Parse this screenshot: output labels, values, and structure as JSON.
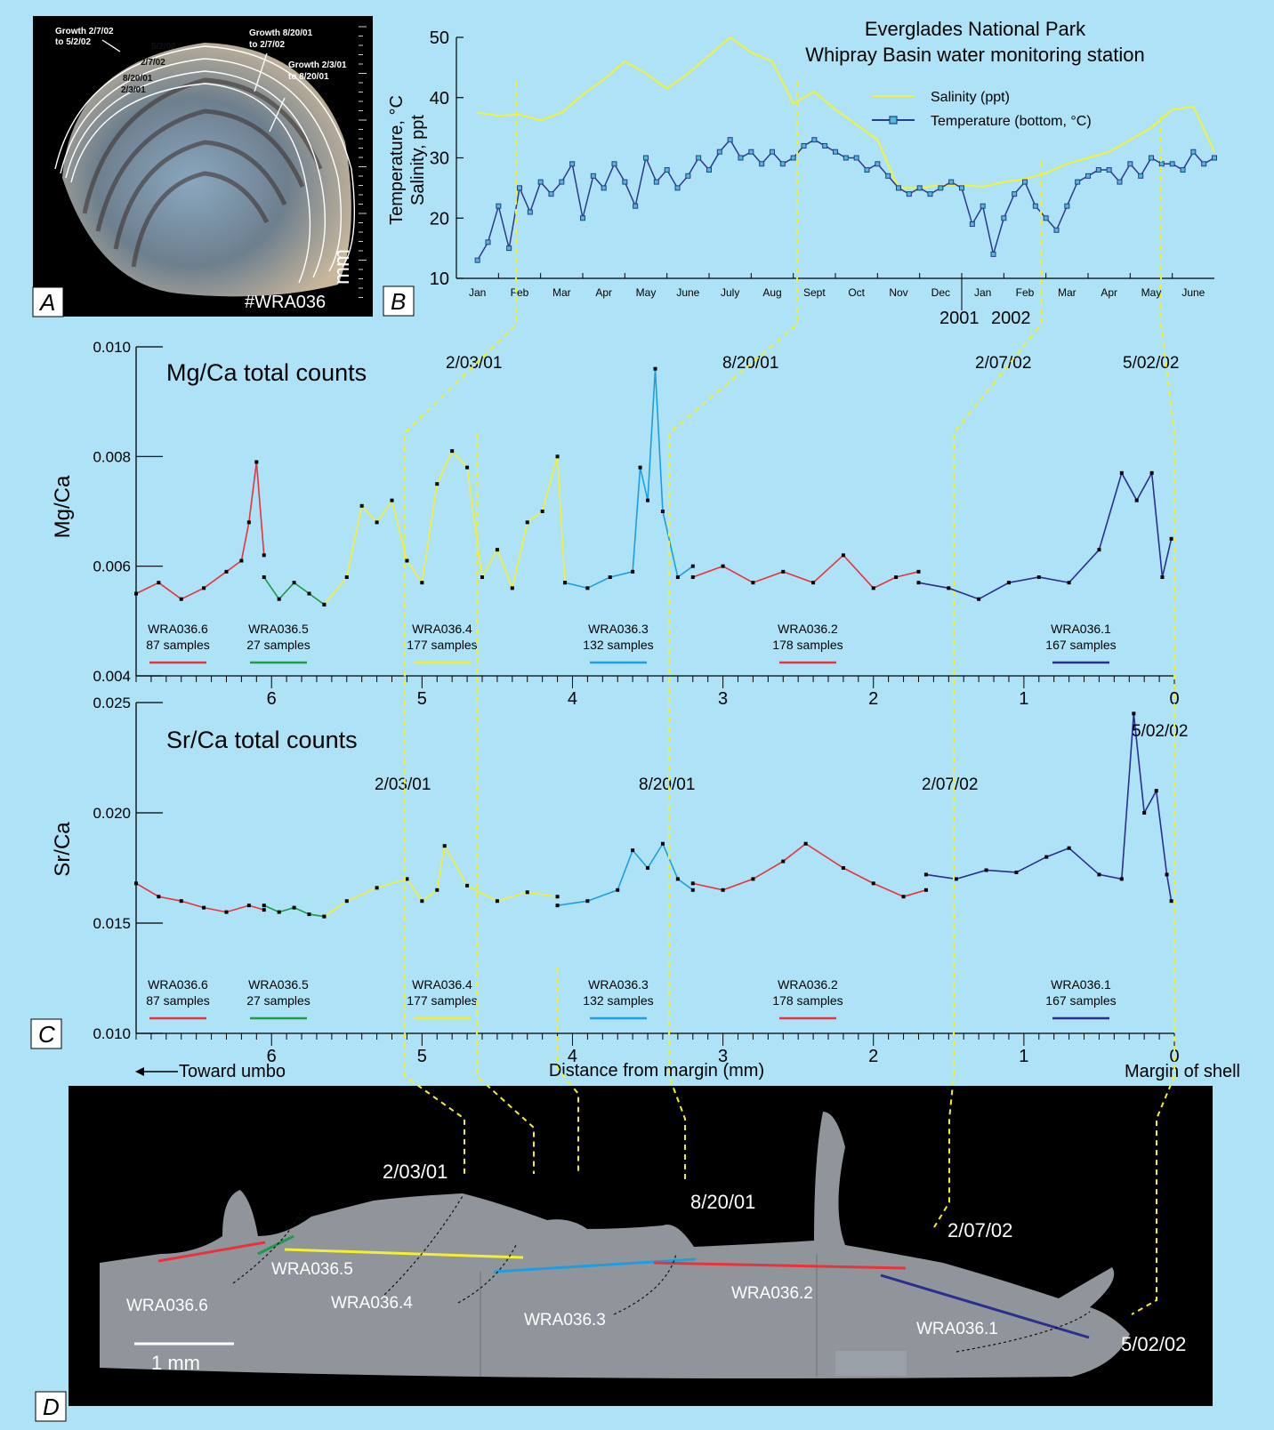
{
  "colors": {
    "background": "#aee3f7",
    "salinity": "#f2f23a",
    "temperature": "#2b3a8a",
    "red": "#e8333b",
    "green": "#1f9a48",
    "yellow": "#f5ef2f",
    "cyan": "#1e9ee0",
    "navy": "#2a2f8f",
    "guide": "#f2ef2a"
  },
  "panel_labels": {
    "a": "A",
    "b": "B",
    "c": "C",
    "d": "D"
  },
  "photo": {
    "specimen": "#WRA036",
    "scale_unit": "mm",
    "annotations": {
      "growth_1": "Growth 2/7/02",
      "growth_1b": "to 5/2/02",
      "growth_2": "Growth 8/20/01",
      "growth_2b": "to 2/7/02",
      "growth_3": "Growth 2/3/01",
      "growth_3b": "to 8/20/01",
      "band_1": "5/2/02",
      "band_2": "2/7/02",
      "band_3": "8/20/01",
      "band_4": "2/3/01"
    }
  },
  "section": {
    "scale_bar": "1 mm",
    "dates": {
      "d1": "2/03/01",
      "d2": "8/20/01",
      "d3": "2/07/02",
      "d4": "5/02/02"
    },
    "tracks": [
      {
        "id": "WRA036.6",
        "color": "red"
      },
      {
        "id": "WRA036.5",
        "color": "green"
      },
      {
        "id": "WRA036.4",
        "color": "yellow"
      },
      {
        "id": "WRA036.3",
        "color": "cyan"
      },
      {
        "id": "WRA036.2",
        "color": "red"
      },
      {
        "id": "WRA036.1",
        "color": "navy"
      }
    ]
  },
  "chart_data": [
    {
      "type": "line",
      "title_line1": "Everglades National Park",
      "title_line2": "Whipray Basin water monitoring station",
      "ylabel_line1": "Temperature, °C",
      "ylabel_line2": "Salinity, ppt",
      "ylim": [
        10,
        50
      ],
      "yticks": [
        10,
        20,
        30,
        40,
        50
      ],
      "months": [
        "Jan",
        "Feb",
        "Mar",
        "Apr",
        "May",
        "June",
        "July",
        "Aug",
        "Sept",
        "Oct",
        "Nov",
        "Dec",
        "Jan",
        "Feb",
        "Mar",
        "Apr",
        "May",
        "June"
      ],
      "year_labels": [
        "2001",
        "2002"
      ],
      "legend": [
        "Salinity (ppt)",
        "Temperature (bottom, °C)"
      ],
      "series": [
        {
          "name": "Salinity (ppt)",
          "x_month": [
            0,
            0.5,
            1,
            1.5,
            2,
            2.5,
            3,
            3.5,
            4,
            4.5,
            5,
            5.5,
            6,
            6.5,
            7,
            7.5,
            8,
            8.5,
            9,
            9.5,
            10,
            10.5,
            11,
            11.5,
            12,
            12.5,
            13,
            13.5,
            14,
            14.5,
            15,
            15.5,
            16,
            16.5,
            17,
            17.5
          ],
          "values": [
            37.5,
            37.0,
            37.2,
            36.2,
            37.5,
            40.5,
            43.0,
            46.0,
            44.0,
            41.5,
            44.0,
            47.0,
            50.0,
            47.5,
            46.0,
            39.0,
            41.0,
            38.0,
            35.5,
            33.0,
            25.0,
            25.0,
            25.5,
            25.5,
            25.2,
            26.0,
            26.5,
            27.5,
            29.0,
            30.0,
            31.0,
            33.0,
            35.0,
            38.0,
            38.5,
            31.0
          ]
        },
        {
          "name": "Temperature (bottom, °C)",
          "x_month": [
            0,
            0.25,
            0.5,
            0.75,
            1,
            1.25,
            1.5,
            1.75,
            2,
            2.25,
            2.5,
            2.75,
            3,
            3.25,
            3.5,
            3.75,
            4,
            4.25,
            4.5,
            4.75,
            5,
            5.25,
            5.5,
            5.75,
            6,
            6.25,
            6.5,
            6.75,
            7,
            7.25,
            7.5,
            7.75,
            8,
            8.25,
            8.5,
            8.75,
            9,
            9.25,
            9.5,
            9.75,
            10,
            10.25,
            10.5,
            10.75,
            11,
            11.25,
            11.5,
            11.75,
            12,
            12.25,
            12.5,
            12.75,
            13,
            13.25,
            13.5,
            13.75,
            14,
            14.25,
            14.5,
            14.75,
            15,
            15.25,
            15.5,
            15.75,
            16,
            16.25,
            16.5,
            16.75,
            17,
            17.25,
            17.5
          ],
          "values": [
            13,
            16,
            22,
            15,
            25,
            21,
            26,
            24,
            26,
            29,
            20,
            27,
            25,
            29,
            26,
            22,
            30,
            26,
            28,
            25,
            27,
            30,
            28,
            31,
            33,
            30,
            31,
            29,
            31,
            29,
            30,
            32,
            33,
            32,
            31,
            30,
            30,
            28,
            29,
            27,
            25,
            24,
            25,
            24,
            25,
            26,
            25,
            19,
            22,
            14,
            20,
            24,
            26,
            22,
            20,
            18,
            22,
            26,
            27,
            28,
            28,
            26,
            29,
            27,
            30,
            29,
            29,
            28,
            31,
            29,
            30
          ]
        }
      ]
    },
    {
      "type": "line",
      "title": "Mg/Ca total counts",
      "ylabel": "Mg/Ca",
      "xlim": [
        6.9,
        0
      ],
      "ylim": [
        0.004,
        0.01
      ],
      "yticks": [
        "0.004",
        "0.006",
        "0.008",
        "0.010"
      ],
      "xticks": [
        "6",
        "5",
        "4",
        "3",
        "2",
        "1",
        "0"
      ],
      "date_labels": {
        "d1": "2/03/01",
        "d2": "8/20/01",
        "d3": "2/07/02",
        "d4": "5/02/02"
      },
      "segments": [
        {
          "name": "WRA036.6",
          "samples": "87 samples",
          "color": "red",
          "x": [
            6.9,
            6.75,
            6.6,
            6.45,
            6.3,
            6.2,
            6.15,
            6.1,
            6.05
          ],
          "values": [
            0.0055,
            0.0057,
            0.0054,
            0.0056,
            0.0059,
            0.0061,
            0.0068,
            0.0079,
            0.0062
          ]
        },
        {
          "name": "WRA036.5",
          "samples": "27 samples",
          "color": "green",
          "x": [
            6.05,
            5.95,
            5.85,
            5.75,
            5.65
          ],
          "values": [
            0.0058,
            0.0054,
            0.0057,
            0.0055,
            0.0053
          ]
        },
        {
          "name": "WRA036.4",
          "samples": "177 samples",
          "color": "yellow",
          "x": [
            5.65,
            5.5,
            5.4,
            5.3,
            5.2,
            5.1,
            5.0,
            4.9,
            4.8,
            4.7,
            4.6,
            4.5,
            4.4,
            4.3,
            4.2,
            4.1,
            4.05
          ],
          "values": [
            0.0053,
            0.0058,
            0.0071,
            0.0068,
            0.0072,
            0.0061,
            0.0057,
            0.0075,
            0.0081,
            0.0078,
            0.0058,
            0.0063,
            0.0056,
            0.0068,
            0.007,
            0.008,
            0.0057
          ]
        },
        {
          "name": "WRA036.3",
          "samples": "132 samples",
          "color": "cyan",
          "x": [
            4.05,
            3.9,
            3.75,
            3.6,
            3.55,
            3.5,
            3.45,
            3.4,
            3.3,
            3.2
          ],
          "values": [
            0.0057,
            0.0056,
            0.0058,
            0.0059,
            0.0078,
            0.0072,
            0.0096,
            0.007,
            0.0058,
            0.006
          ]
        },
        {
          "name": "WRA036.2",
          "samples": "178 samples",
          "color": "red",
          "x": [
            3.2,
            3.0,
            2.8,
            2.6,
            2.4,
            2.2,
            2.0,
            1.85,
            1.7
          ],
          "values": [
            0.0058,
            0.006,
            0.0057,
            0.0059,
            0.0057,
            0.0062,
            0.0056,
            0.0058,
            0.0059
          ]
        },
        {
          "name": "WRA036.1",
          "samples": "167 samples",
          "color": "navy",
          "x": [
            1.7,
            1.5,
            1.3,
            1.1,
            0.9,
            0.7,
            0.5,
            0.35,
            0.25,
            0.15,
            0.08,
            0.02
          ],
          "values": [
            0.0057,
            0.0056,
            0.0054,
            0.0057,
            0.0058,
            0.0057,
            0.0063,
            0.0077,
            0.0072,
            0.0077,
            0.0058,
            0.0065
          ]
        }
      ]
    },
    {
      "type": "line",
      "title": "Sr/Ca total counts",
      "ylabel": "Sr/Ca",
      "xlabel": "Distance from margin (mm)",
      "x_left_note": "Toward umbo",
      "x_right_note": "Margin of shell",
      "xlim": [
        6.9,
        0
      ],
      "ylim": [
        0.01,
        0.025
      ],
      "yticks": [
        "0.010",
        "0.015",
        "0.020",
        "0.025"
      ],
      "xticks": [
        "6",
        "5",
        "4",
        "3",
        "2",
        "1",
        "0"
      ],
      "date_labels": {
        "d1": "2/03/01",
        "d2": "8/20/01",
        "d3": "2/07/02",
        "d4": "5/02/02"
      },
      "segments": [
        {
          "name": "WRA036.6",
          "samples": "87 samples",
          "color": "red",
          "x": [
            6.9,
            6.75,
            6.6,
            6.45,
            6.3,
            6.15,
            6.05
          ],
          "values": [
            0.0168,
            0.0162,
            0.016,
            0.0157,
            0.0155,
            0.0158,
            0.0156
          ]
        },
        {
          "name": "WRA036.5",
          "samples": "27 samples",
          "color": "green",
          "x": [
            6.05,
            5.95,
            5.85,
            5.75,
            5.65
          ],
          "values": [
            0.0158,
            0.0155,
            0.0157,
            0.0154,
            0.0153
          ]
        },
        {
          "name": "WRA036.4",
          "samples": "177 samples",
          "color": "yellow",
          "x": [
            5.65,
            5.5,
            5.3,
            5.1,
            5.0,
            4.9,
            4.85,
            4.7,
            4.5,
            4.3,
            4.1
          ],
          "values": [
            0.0153,
            0.016,
            0.0166,
            0.017,
            0.016,
            0.0165,
            0.0185,
            0.0167,
            0.016,
            0.0164,
            0.0162
          ]
        },
        {
          "name": "WRA036.3",
          "samples": "132 samples",
          "color": "cyan",
          "x": [
            4.1,
            3.9,
            3.7,
            3.6,
            3.5,
            3.4,
            3.3,
            3.2
          ],
          "values": [
            0.0158,
            0.016,
            0.0165,
            0.0183,
            0.0175,
            0.0186,
            0.017,
            0.0165
          ]
        },
        {
          "name": "WRA036.2",
          "samples": "178 samples",
          "color": "red",
          "x": [
            3.2,
            3.0,
            2.8,
            2.6,
            2.45,
            2.2,
            2.0,
            1.8,
            1.65
          ],
          "values": [
            0.0168,
            0.0165,
            0.017,
            0.0178,
            0.0186,
            0.0175,
            0.0168,
            0.0162,
            0.0165
          ]
        },
        {
          "name": "WRA036.1",
          "samples": "167 samples",
          "color": "navy",
          "x": [
            1.65,
            1.45,
            1.25,
            1.05,
            0.85,
            0.7,
            0.5,
            0.35,
            0.27,
            0.2,
            0.12,
            0.05,
            0.02
          ],
          "values": [
            0.0172,
            0.017,
            0.0174,
            0.0173,
            0.018,
            0.0184,
            0.0172,
            0.017,
            0.0245,
            0.02,
            0.021,
            0.0172,
            0.016
          ]
        }
      ]
    }
  ]
}
